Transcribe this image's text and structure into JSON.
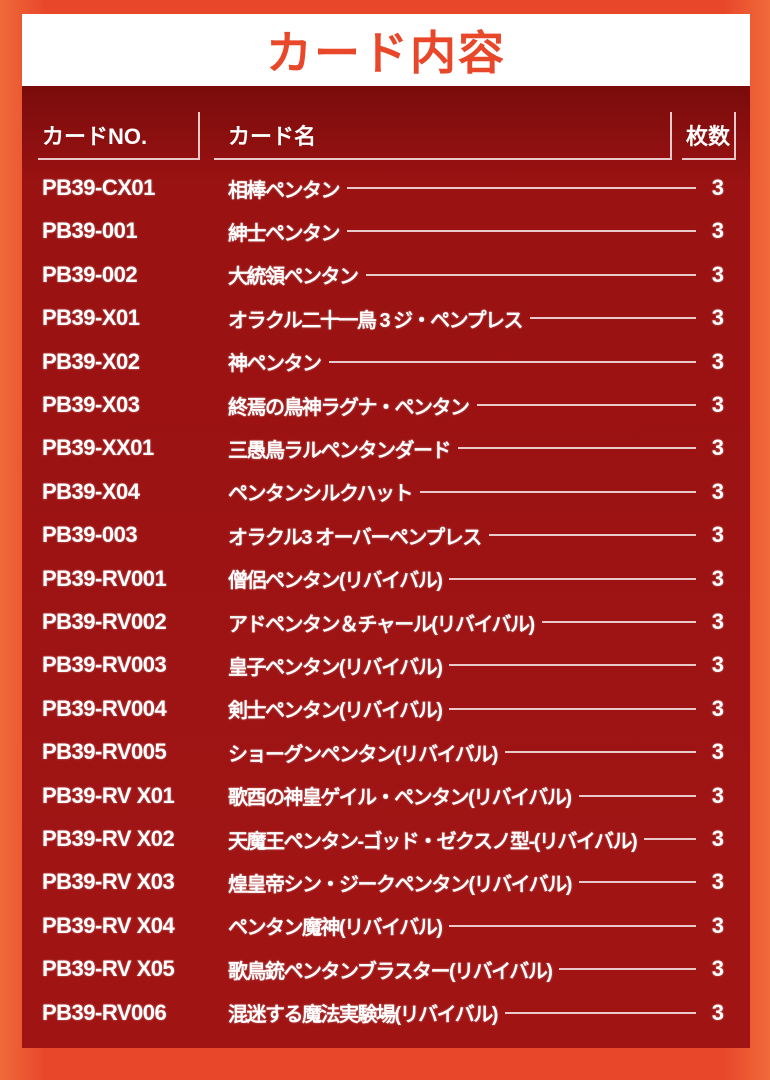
{
  "title": "カード内容",
  "headers": {
    "no": "カードNO.",
    "name": "カード名",
    "count": "枚数"
  },
  "colors": {
    "background": "#e8472a",
    "panel": "#a11414",
    "title_text": "#e8472a"
  },
  "rows": [
    {
      "no": "PB39-CX01",
      "name": "相棒ペンタン",
      "count": "3"
    },
    {
      "no": "PB39-001",
      "name": "紳士ペンタン",
      "count": "3"
    },
    {
      "no": "PB39-002",
      "name": "大統領ペンタン",
      "count": "3"
    },
    {
      "no": "PB39-X01",
      "name": "オラクル二十一鳥 3 ジ・ペンプレス",
      "count": "3"
    },
    {
      "no": "PB39-X02",
      "name": "神ペンタン",
      "count": "3"
    },
    {
      "no": "PB39-X03",
      "name": "終焉の鳥神ラグナ・ペンタン",
      "count": "3"
    },
    {
      "no": "PB39-XX01",
      "name": "三愚鳥ラルペンタンダード",
      "count": "3"
    },
    {
      "no": "PB39-X04",
      "name": "ペンタンシルクハット",
      "count": "3"
    },
    {
      "no": "PB39-003",
      "name": "オラクル3 オーバーペンプレス",
      "count": "3"
    },
    {
      "no": "PB39-RV001",
      "name": "僧侶ペンタン(リバイバル)",
      "count": "3"
    },
    {
      "no": "PB39-RV002",
      "name": "アドペンタン＆チャール(リバイバル)",
      "count": "3"
    },
    {
      "no": "PB39-RV003",
      "name": "皇子ペンタン(リバイバル)",
      "count": "3"
    },
    {
      "no": "PB39-RV004",
      "name": "剣士ペンタン(リバイバル)",
      "count": "3"
    },
    {
      "no": "PB39-RV005",
      "name": "ショーグンペンタン(リバイバル)",
      "count": "3"
    },
    {
      "no": "PB39-RV X01",
      "name": "歌酉の神皇ゲイル・ペンタン(リバイバル)",
      "count": "3"
    },
    {
      "no": "PB39-RV X02",
      "name": "天魔王ペンタン-ゴッド・ゼクスノ型-(リバイバル)",
      "count": "3"
    },
    {
      "no": "PB39-RV X03",
      "name": "煌皇帝シン・ジークペンタン(リバイバル)",
      "count": "3"
    },
    {
      "no": "PB39-RV X04",
      "name": "ペンタン魔神(リバイバル)",
      "count": "3"
    },
    {
      "no": "PB39-RV X05",
      "name": "歌鳥銃ペンタンブラスター(リバイバル)",
      "count": "3"
    },
    {
      "no": "PB39-RV006",
      "name": "混迷する魔法実験場(リバイバル)",
      "count": "3"
    }
  ]
}
